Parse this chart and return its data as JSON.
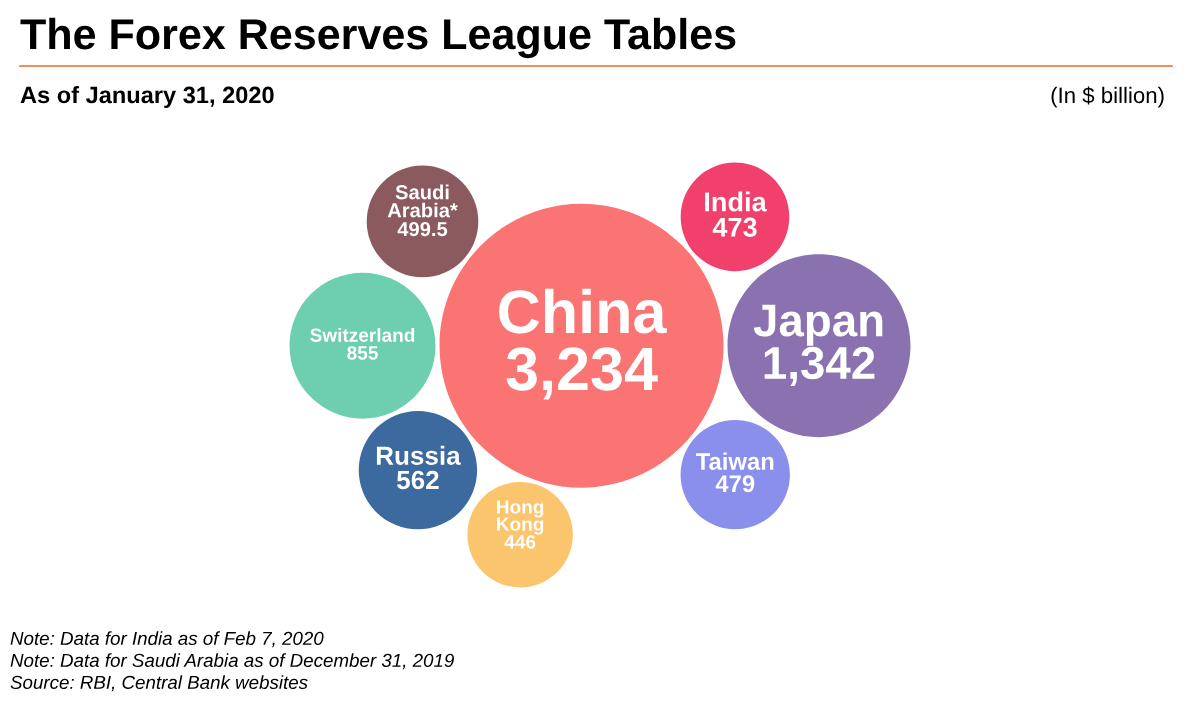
{
  "chart_data": {
    "type": "other",
    "title": "The Forex Reserves League Tables",
    "subtitle": "As of January 31, 2020",
    "annotations": [
      "(In $ billion)",
      "Note: Data for India as of Feb 7, 2020",
      "Note: Data for Saudi Arabia as of December 31, 2019",
      "Source: RBI, Central Bank websites"
    ],
    "categories": [
      "China",
      "Japan",
      "Switzerland",
      "Russia",
      "Saudi\nArabia*",
      "Taiwan",
      "India",
      "Hong\nKong"
    ],
    "values": [
      3234,
      1342,
      855,
      562,
      499.5,
      479,
      473,
      446
    ],
    "value_labels": [
      "3,234",
      "1,342",
      "855",
      "562",
      "499.5",
      "479",
      "473",
      "446"
    ],
    "colors": [
      "#fb7474",
      "#8a72b0",
      "#6dcfb0",
      "#3d6a9e",
      "#8b5a5f",
      "#8a8fec",
      "#f0406b",
      "#fbc56e"
    ]
  }
}
